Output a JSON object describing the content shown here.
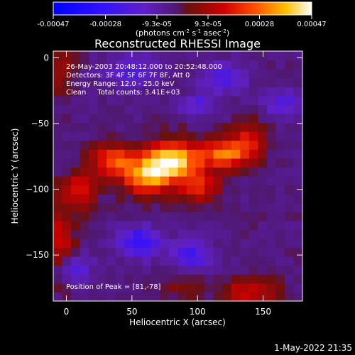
{
  "chart_data": {
    "type": "heatmap",
    "title": "Reconstructed RHESSI Image",
    "xlabel": "Heliocentric X (arcsec)",
    "ylabel": "Heliocentric Y (arcsec)",
    "xlim": [
      -10,
      180
    ],
    "ylim": [
      -185,
      5
    ],
    "x_ticks": [
      0,
      50,
      100,
      150
    ],
    "y_ticks": [
      0,
      -50,
      -100,
      -150
    ],
    "colorbar": {
      "vmin": -0.00047,
      "vmax": 0.00047,
      "tick_values": [
        -0.00047,
        -0.00028,
        -9.3e-05,
        9.3e-05,
        0.00028,
        0.00047
      ],
      "tick_labels": [
        "-0.00047",
        "-0.00028",
        "-9.3e-05",
        "9.3e-05",
        "0.00028",
        "0.00047"
      ],
      "unit_parts": [
        "(photons cm",
        "-2",
        " s",
        "-1",
        " asec",
        "-2",
        ")"
      ]
    },
    "annotations": [
      "26-May-2003 20:48:12.000 to 20:52:48.000",
      "Detectors: 3F 4F 5F 6F 7F 8F, Att 0",
      "Energy Range: 12.0 - 25.0 keV",
      "Clean     Total counts: 3.41E+03"
    ],
    "peak_label": "Position of Peak = [81,-78]",
    "peak": [
      81,
      -78
    ],
    "x_extent": [
      -10,
      180
    ],
    "y_extent": [
      -185,
      5
    ],
    "grid_size": [
      28,
      28
    ],
    "sources": [
      {
        "x": 81,
        "y": -78,
        "amp": 1.0,
        "sx": 14,
        "sy": 10
      },
      {
        "x": 60,
        "y": -90,
        "amp": 0.78,
        "sx": 12,
        "sy": 10
      },
      {
        "x": 35,
        "y": -78,
        "amp": 0.62,
        "sx": 11,
        "sy": 8
      },
      {
        "x": 122,
        "y": -73,
        "amp": 0.72,
        "sx": 14,
        "sy": 8
      },
      {
        "x": 100,
        "y": -98,
        "amp": 0.45,
        "sx": 12,
        "sy": 8
      },
      {
        "x": 10,
        "y": -100,
        "amp": 0.42,
        "sx": 9,
        "sy": 10
      },
      {
        "x": 140,
        "y": -60,
        "amp": 0.35,
        "sx": 10,
        "sy": 8
      },
      {
        "x": 140,
        "y": -178,
        "amp": 0.4,
        "sx": 14,
        "sy": 8
      },
      {
        "x": -5,
        "y": -140,
        "amp": 0.38,
        "sx": 8,
        "sy": 20
      },
      {
        "x": -5,
        "y": -10,
        "amp": 0.25,
        "sx": 8,
        "sy": 12
      },
      {
        "x": 90,
        "y": -175,
        "amp": 0.2,
        "sx": 10,
        "sy": 6
      },
      {
        "x": 55,
        "y": -140,
        "amp": -0.55,
        "sx": 12,
        "sy": 8
      },
      {
        "x": 95,
        "y": -150,
        "amp": -0.45,
        "sx": 10,
        "sy": 8
      },
      {
        "x": 50,
        "y": -10,
        "amp": -0.35,
        "sx": 14,
        "sy": 8
      },
      {
        "x": 120,
        "y": -15,
        "amp": -0.35,
        "sx": 12,
        "sy": 8
      },
      {
        "x": 165,
        "y": -35,
        "amp": -0.35,
        "sx": 10,
        "sy": 8
      },
      {
        "x": 100,
        "y": -35,
        "amp": -0.3,
        "sx": 10,
        "sy": 6
      },
      {
        "x": 5,
        "y": -160,
        "amp": -0.35,
        "sx": 10,
        "sy": 8
      }
    ],
    "background_level": -0.08
  },
  "footer_timestamp": "1-May-2022 21:35"
}
